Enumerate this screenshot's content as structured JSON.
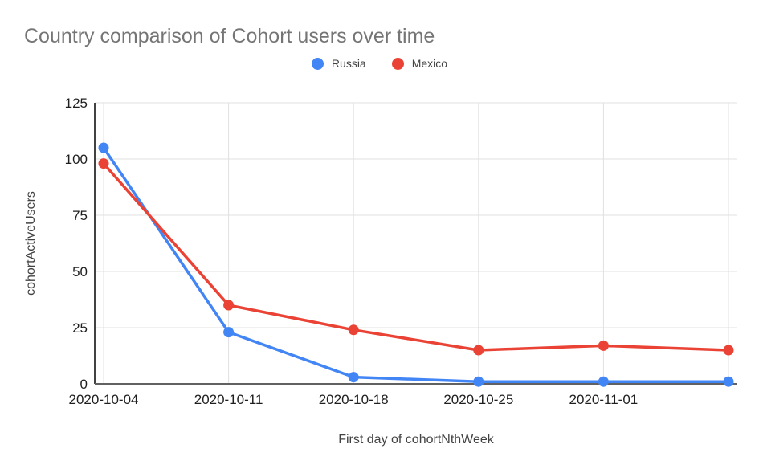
{
  "chart_data": {
    "type": "line",
    "title": "Country comparison of Cohort users over time",
    "xlabel": "First day of cohortNthWeek",
    "ylabel": "cohortActiveUsers",
    "x_tick_labels": [
      "2020-10-04",
      "2020-10-11",
      "2020-10-18",
      "2020-10-25",
      "2020-11-01",
      ""
    ],
    "series": [
      {
        "name": "Russia",
        "color": "#4285F4",
        "values": [
          105,
          23,
          3,
          1,
          1,
          1
        ]
      },
      {
        "name": "Mexico",
        "color": "#EA4335",
        "values": [
          98,
          35,
          24,
          15,
          17,
          15
        ]
      }
    ],
    "ylim": [
      0,
      125
    ],
    "yticks": [
      0,
      25,
      50,
      75,
      100,
      125
    ],
    "grid": true,
    "legend_position": "top",
    "colors": {
      "title": "#757575",
      "tick_label": "#1f1f1f",
      "axis_title": "#424242",
      "gridline": "#e0e0e0",
      "y_axis_line": "#424242",
      "x_baseline": "#616161",
      "background": "#ffffff"
    }
  }
}
